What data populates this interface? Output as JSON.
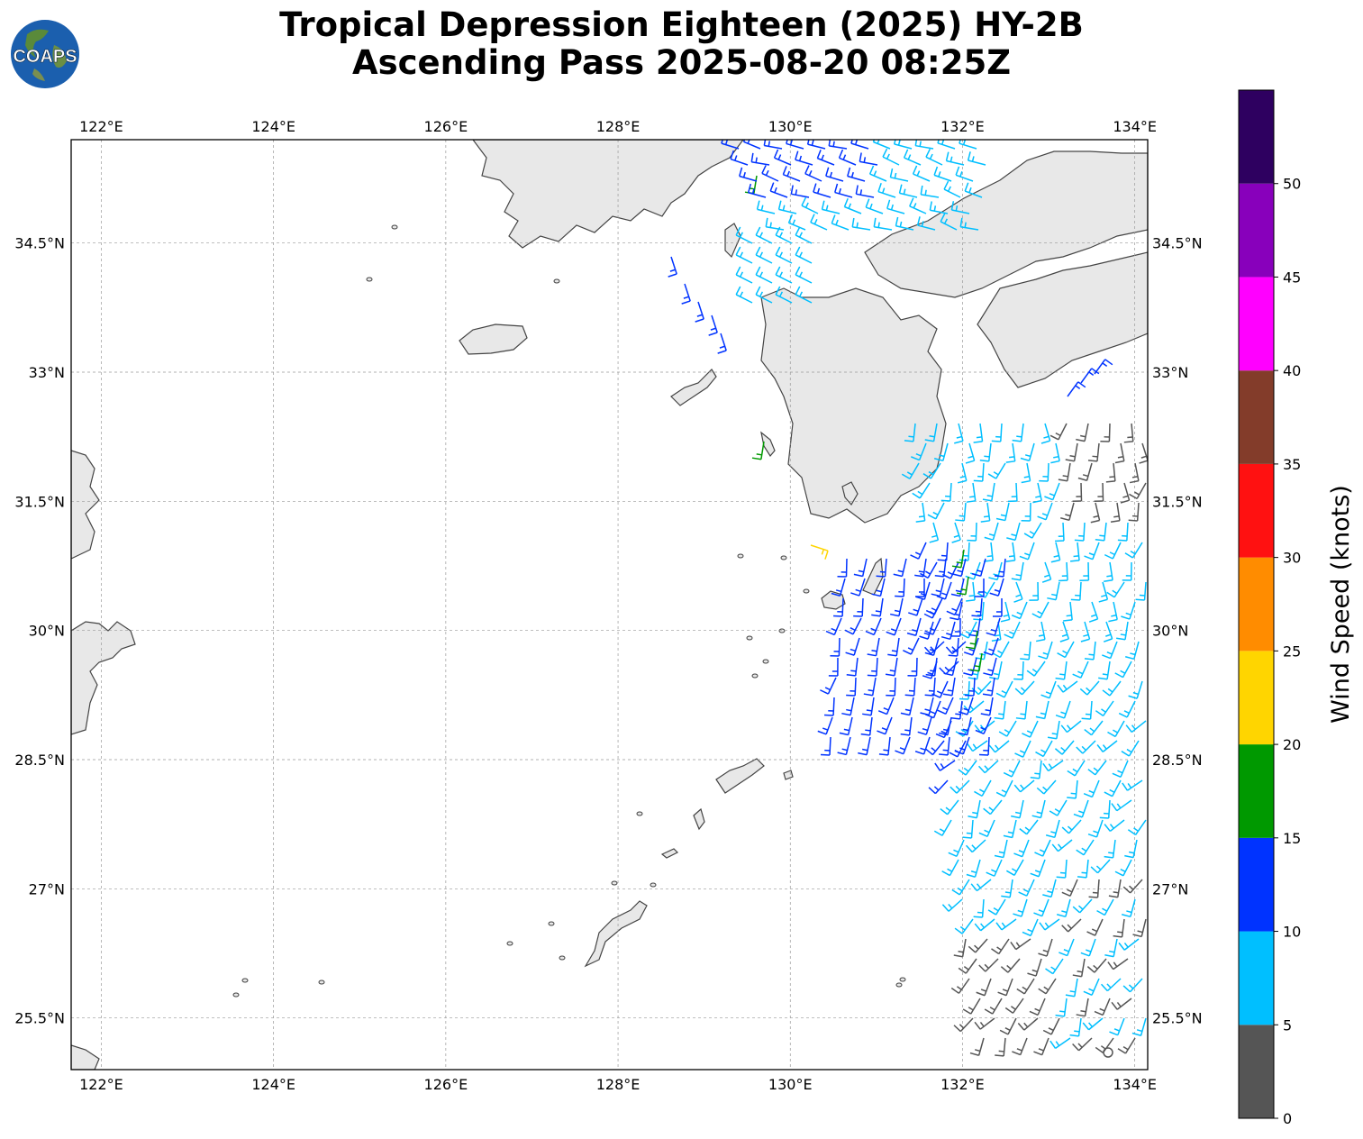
{
  "title": {
    "line1": "Tropical Depression Eighteen (2025) HY-2B",
    "line2": "Ascending Pass 2025-08-20 08:25Z"
  },
  "logo": {
    "text": "COAPS",
    "icon": "globe-logo"
  },
  "map": {
    "lon_range": [
      121.65,
      134.15
    ],
    "lat_range": [
      24.9,
      35.7
    ],
    "x_ticks": [
      {
        "value": 122,
        "label": "122°E"
      },
      {
        "value": 124,
        "label": "124°E"
      },
      {
        "value": 126,
        "label": "126°E"
      },
      {
        "value": 128,
        "label": "128°E"
      },
      {
        "value": 130,
        "label": "130°E"
      },
      {
        "value": 132,
        "label": "132°E"
      },
      {
        "value": 134,
        "label": "134°E"
      }
    ],
    "y_ticks": [
      {
        "value": 34.5,
        "label": "34.5°N"
      },
      {
        "value": 33,
        "label": "33°N"
      },
      {
        "value": 31.5,
        "label": "31.5°N"
      },
      {
        "value": 30,
        "label": "30°N"
      },
      {
        "value": 28.5,
        "label": "28.5°N"
      },
      {
        "value": 27,
        "label": "27°N"
      },
      {
        "value": 25.5,
        "label": "25.5°N"
      }
    ],
    "gridlines": true,
    "land_color": "#e8e8e8",
    "coast_color": "#444444"
  },
  "colorbar": {
    "label": "Wind Speed (knots)",
    "bounds": [
      0,
      5,
      10,
      15,
      20,
      25,
      30,
      35,
      40,
      45,
      50,
      55
    ],
    "tick_labels": [
      "0",
      "5",
      "10",
      "15",
      "20",
      "25",
      "30",
      "35",
      "40",
      "45",
      "50"
    ],
    "colors": [
      "#555555",
      "#00bfff",
      "#0033ff",
      "#009900",
      "#ffd500",
      "#ff8c00",
      "#ff1111",
      "#833c2a",
      "#ff00ff",
      "#8800bb",
      "#2e0060"
    ]
  },
  "wind_barbs": {
    "description_units": "knots",
    "swath_center_speed_band_colors": [
      "#555555",
      "#00bfff",
      "#0033ff",
      "#009900",
      "#ffd500"
    ]
  }
}
